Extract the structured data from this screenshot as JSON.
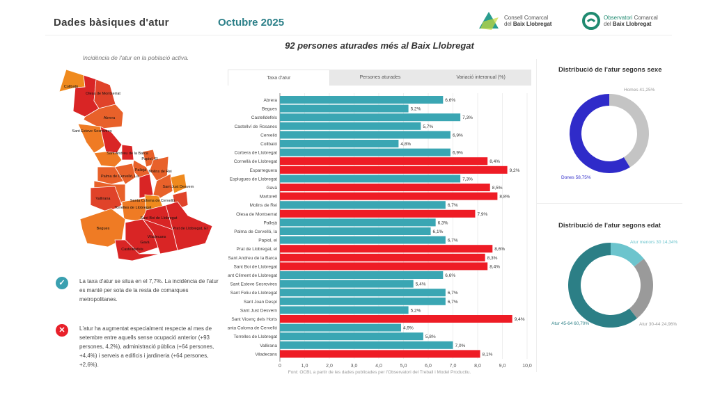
{
  "header": {
    "title": "Dades bàsiques d'atur",
    "month": "Octubre 2025",
    "logo1": {
      "line1": "Consell Comarcal",
      "line2_prefix": "del ",
      "line2_bold": "Baix Llobregat"
    },
    "logo2": {
      "line1_a": "Observatori",
      "line1_b": " Comarcal",
      "line2_prefix": "del ",
      "line2_bold": "Baix Llobregat"
    }
  },
  "headline": "92 persones aturades més al Baix Llobregat",
  "map": {
    "title": "Incidència de l'atur en la població activa.",
    "labels": [
      "Collbató",
      "Olesa de Montserrat",
      "Abrera",
      "Sant Esteve Sesrovires",
      "Sant Andreu de la Barca",
      "Papiol, El",
      "Pallejà",
      "Molins de Rei",
      "Palma de Cervelló, La",
      "Sant Just Desvern",
      "Santa Coloma de Cervelló",
      "Vallirana",
      "Torrelles de Llobregat",
      "Sant Boi de Llobregat",
      "Prat de Llobregat, El",
      "Begues",
      "Viladecans",
      "Gavà",
      "Castelldefels"
    ]
  },
  "notes": [
    {
      "icon": "check-icon",
      "color": "#3aa0b0",
      "text": "La taxa d'atur se situa en el 7,7%. La incidència de l'atur es manté per sota de la resta de comarques metropolitanes."
    },
    {
      "icon": "x-icon",
      "color": "#e8202a",
      "text": "L'atur ha augmentat especialment respecte al mes de setembre entre aquells sense ocupació anterior (+93 persones, 4,2%), administració pública (+64 persones, +4,4%) i serveis a edificis i jardineria (+64 persones, +2,6%)."
    }
  ],
  "tabs": [
    {
      "label": "Taxa d'atur",
      "active": true
    },
    {
      "label": "Persones aturades",
      "active": false
    },
    {
      "label": "Variació interanual (%)",
      "active": false
    }
  ],
  "source": "Font: OCBL a partir de les dades publicades per l'Observatori del Treball i Model Productiu.",
  "colors": {
    "below": "#3aa6b3",
    "above": "#ee1c25"
  },
  "chart_data": [
    {
      "type": "bar",
      "orientation": "horizontal",
      "xlim": [
        0,
        10
      ],
      "ticks": [
        "0",
        "1,0",
        "2,0",
        "3,0",
        "4,0",
        "5,0",
        "6,0",
        "7,0",
        "8,0",
        "9,0",
        "10,0"
      ],
      "categories": [
        "Abrera",
        "Begues",
        "Castelldefels",
        "Castellví de Rosanes",
        "Cervelló",
        "Collbató",
        "Corbera de Llobregat",
        "Cornellà de Llobregat",
        "Esparreguera",
        "Esplugues de Llobregat",
        "Gavà",
        "Martorell",
        "Molins de Rei",
        "Olesa de Montserrat",
        "Pallejà",
        "Palma de Cervelló, la",
        "Papiol, el",
        "Prat de Llobregat, el",
        "Sant Andreu de la Barca",
        "Sant Boi de Llobregat",
        "Sant Climent de Llobregat",
        "Sant Esteve Sesrovires",
        "Sant Feliu de Llobregat",
        "Sant Joan Despí",
        "Sant Just Desvern",
        "Sant Vicenç dels Horts",
        "Santa Coloma de Cervelló",
        "Torrelles de Llobregat",
        "Vallirana",
        "Viladecans"
      ],
      "values": [
        6.6,
        5.2,
        7.3,
        5.7,
        6.9,
        4.8,
        6.9,
        8.4,
        9.2,
        7.3,
        8.5,
        8.8,
        6.7,
        7.9,
        6.3,
        6.1,
        6.7,
        8.6,
        8.3,
        8.4,
        6.6,
        5.4,
        6.7,
        6.7,
        5.2,
        9.4,
        4.9,
        5.8,
        7.0,
        8.1
      ],
      "labels": [
        "6,6%",
        "5,2%",
        "7,3%",
        "5,7%",
        "6,9%",
        "4,8%",
        "6,9%",
        "8,4%",
        "9,2%",
        "7,3%",
        "8,5%",
        "8,8%",
        "6,7%",
        "7,9%",
        "6,3%",
        "6,1%",
        "6,7%",
        "8,6%",
        "8,3%",
        "8,4%",
        "6,6%",
        "5,4%",
        "6,7%",
        "6,7%",
        "5,2%",
        "9,4%",
        "4,9%",
        "5,8%",
        "7,0%",
        "8,1%"
      ],
      "highlight": [
        false,
        false,
        false,
        false,
        false,
        false,
        false,
        true,
        true,
        false,
        true,
        true,
        false,
        true,
        false,
        false,
        false,
        true,
        true,
        true,
        false,
        false,
        false,
        false,
        false,
        true,
        false,
        false,
        false,
        true
      ]
    },
    {
      "type": "pie",
      "donut": true,
      "title": "Distribució de l'atur segons sexe",
      "slices": [
        {
          "name": "Homes",
          "value": 41.25,
          "label": "Homes 41,25%",
          "color": "#c4c4c4"
        },
        {
          "name": "Dones",
          "value": 58.75,
          "label": "Dones 58,75%",
          "color": "#2f2bc9"
        }
      ]
    },
    {
      "type": "pie",
      "donut": true,
      "title": "Distribució de l'atur segons edat",
      "slices": [
        {
          "name": "Atur menors 30",
          "value": 14.34,
          "label": "Atur menors 30 14,34%",
          "color": "#6cc4cd"
        },
        {
          "name": "Atur 30-44",
          "value": 24.96,
          "label": "Atur 30-44 24,96%",
          "color": "#9a9a9a"
        },
        {
          "name": "Atur 45-64",
          "value": 60.7,
          "label": "Atur 45-64 60,70%",
          "color": "#2c7f86"
        }
      ]
    }
  ]
}
